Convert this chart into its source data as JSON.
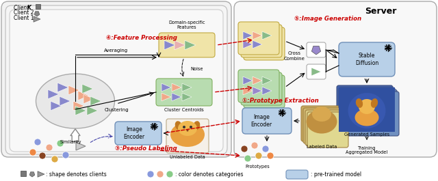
{
  "title": "Server",
  "fig_width": 6.4,
  "fig_height": 2.65,
  "bg_color": "#ffffff",
  "box_blue": "#b8d0e8",
  "box_yellow": "#f0e4a8",
  "box_green": "#b8dcb0",
  "red_color": "#cc0000",
  "legend": {
    "shape_text": ": shape denotes clients",
    "color_text": ": color denotes categories",
    "model_text": ": pre-trained model"
  },
  "labels": {
    "client_k": "Client K",
    "client_2": "Client 2",
    "client_1": "Client 1",
    "feature_proc": "④:Feature Processing",
    "domain_specific": "Domain-specific\nFeatures",
    "averaging": "Averaging",
    "noise": "Noise",
    "clustering": "Clustering",
    "cluster_centroids": "Cluster Centroids",
    "pseudo_label": "③:Pseudo Labeling",
    "similarity": "Similarity",
    "unlabeled": "Unlabeled Data",
    "image_encoder": "Image\nEncoder",
    "cross_combine": "Cross\nCombine",
    "stable_diffusion": "Stable\nDiffusion",
    "generated": "Generated Samples",
    "training": "Training\nAggregated Model",
    "prototype_extract": "①:Prototype Extraction",
    "prototypes": "Prototypes",
    "labeled_data": "Labeled Data",
    "image_generation": "⑤:Image Generation"
  },
  "tri_blue": "#8888cc",
  "tri_salmon": "#f0a888",
  "tri_green": "#88bb88",
  "tri_purple": "#9988cc",
  "circle_blue": "#8899dd",
  "circle_salmon": "#f0a888",
  "circle_green": "#88cc88",
  "circle_brown": "#884422",
  "circle_yellow": "#ddaa44",
  "circle_orange": "#ee8844",
  "circle_pink": "#f0b0b0"
}
